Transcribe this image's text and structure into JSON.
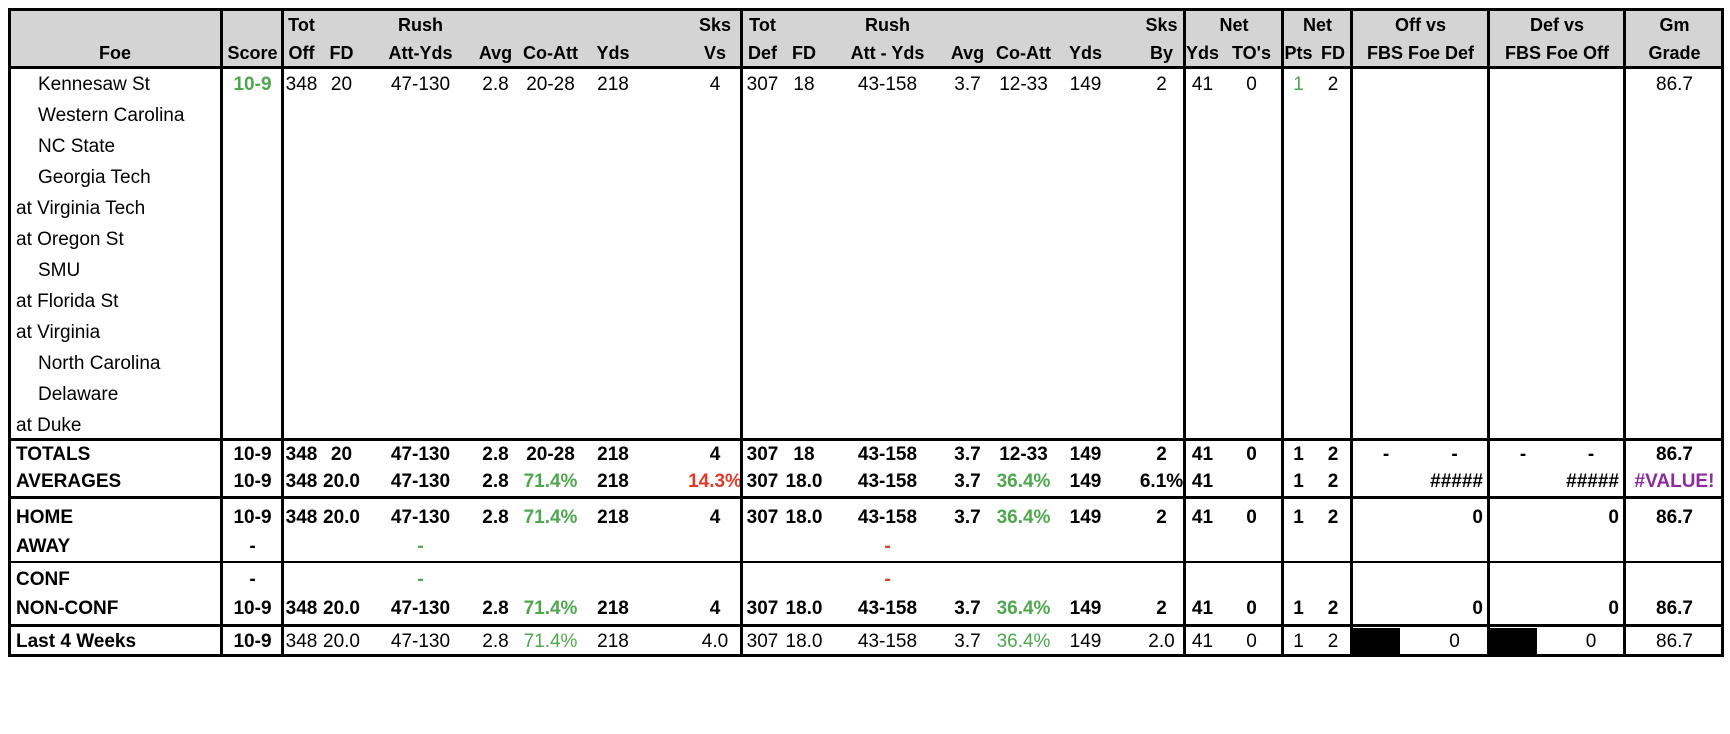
{
  "header": {
    "row1": {
      "tot_off": "Tot",
      "off_rush": "Rush",
      "sks_vs": "Sks",
      "tot_def": "Tot",
      "def_rush": "Rush",
      "sks_by": "Sks",
      "net_yds": "Net",
      "net_pts": "Net",
      "off_vs": "Off vs",
      "def_vs": "Def vs",
      "gm": "Gm"
    },
    "row2": {
      "foe": "Foe",
      "score": "Score",
      "off": "Off",
      "fd": "FD",
      "att_yds": "Att-Yds",
      "avg": "Avg",
      "co_att": "Co-Att",
      "yds": "Yds",
      "vs": "Vs",
      "def": "Def",
      "dfd": "FD",
      "datt_yds": "Att - Yds",
      "davg": "Avg",
      "dco_att": "Co-Att",
      "dyds": "Yds",
      "by": "By",
      "net_y": "Yds",
      "tos": "TO's",
      "pts": "Pts",
      "nfd": "FD",
      "fbs_def": "FBS Foe Def",
      "fbs_off": "FBS Foe Off",
      "grade": "Grade"
    }
  },
  "games": [
    {
      "foe": "Kennesaw St",
      "away": false,
      "score": "10-9",
      "tot_off": "348",
      "fd": "20",
      "rush": "47-130",
      "avg": "2.8",
      "co_att": "20-28",
      "yds": "218",
      "sks_vs": "4",
      "tot_def": "307",
      "dfd": "18",
      "drush": "43-158",
      "davg": "3.7",
      "dco_att": "12-33",
      "dyds": "149",
      "sks_by": "2",
      "net_yds": "41",
      "tos": "0",
      "pts": "1",
      "nfd": "2",
      "grade": "86.7"
    },
    {
      "foe": "Western Carolina",
      "away": false
    },
    {
      "foe": "NC State",
      "away": false
    },
    {
      "foe": "Georgia Tech",
      "away": false
    },
    {
      "foe": "at Virginia Tech",
      "away": true
    },
    {
      "foe": "at Oregon St",
      "away": true
    },
    {
      "foe": "SMU",
      "away": false
    },
    {
      "foe": "at Florida St",
      "away": true
    },
    {
      "foe": "at Virginia",
      "away": true
    },
    {
      "foe": "North Carolina",
      "away": false
    },
    {
      "foe": "Delaware",
      "away": false
    },
    {
      "foe": "at Duke",
      "away": true
    }
  ],
  "summary": {
    "totals": {
      "label": "TOTALS",
      "score": "10-9",
      "tot_off": "348",
      "fd": "20",
      "rush": "47-130",
      "avg": "2.8",
      "co_att": "20-28",
      "yds": "218",
      "sks_vs": "4",
      "tot_def": "307",
      "dfd": "18",
      "drush": "43-158",
      "davg": "3.7",
      "dco_att": "12-33",
      "dyds": "149",
      "sks_by": "2",
      "net_yds": "41",
      "tos": "0",
      "pts": "1",
      "nfd": "2",
      "off_vs_a": "-",
      "off_vs_b": "-",
      "def_vs_a": "-",
      "def_vs_b": "-",
      "grade": "86.7"
    },
    "averages": {
      "label": "AVERAGES",
      "score": "10-9",
      "tot_off": "348",
      "fd": "20.0",
      "rush": "47-130",
      "avg": "2.8",
      "co_att": "71.4%",
      "yds": "218",
      "sks_vs": "14.3%",
      "tot_def": "307",
      "dfd": "18.0",
      "drush": "43-158",
      "davg": "3.7",
      "dco_att": "36.4%",
      "dyds": "149",
      "sks_by": "6.1%",
      "net_yds": "41",
      "pts": "1",
      "nfd": "2",
      "off_vs": "#####",
      "def_vs": "#####",
      "grade": "#VALUE!"
    },
    "home": {
      "label": "HOME",
      "score": "10-9",
      "tot_off": "348",
      "fd": "20.0",
      "rush": "47-130",
      "avg": "2.8",
      "co_att": "71.4%",
      "yds": "218",
      "sks_vs": "4",
      "tot_def": "307",
      "dfd": "18.0",
      "drush": "43-158",
      "davg": "3.7",
      "dco_att": "36.4%",
      "dyds": "149",
      "sks_by": "2",
      "net_yds": "41",
      "tos": "0",
      "pts": "1",
      "nfd": "2",
      "off_vs": "0",
      "def_vs": "0",
      "grade": "86.7"
    },
    "away": {
      "label": "AWAY",
      "score": "-",
      "rush": "-",
      "drush": "-"
    },
    "conf": {
      "label": "CONF",
      "score": "-",
      "rush": "-",
      "drush": "-"
    },
    "nonconf": {
      "label": "NON-CONF",
      "score": "10-9",
      "tot_off": "348",
      "fd": "20.0",
      "rush": "47-130",
      "avg": "2.8",
      "co_att": "71.4%",
      "yds": "218",
      "sks_vs": "4",
      "tot_def": "307",
      "dfd": "18.0",
      "drush": "43-158",
      "davg": "3.7",
      "dco_att": "36.4%",
      "dyds": "149",
      "sks_by": "2",
      "net_yds": "41",
      "tos": "0",
      "pts": "1",
      "nfd": "2",
      "off_vs": "0",
      "def_vs": "0",
      "grade": "86.7"
    },
    "last4": {
      "label": "Last 4 Weeks",
      "score": "10-9",
      "tot_off": "348",
      "fd": "20.0",
      "rush": "47-130",
      "avg": "2.8",
      "co_att": "71.4%",
      "yds": "218",
      "sks_vs": "4.0",
      "tot_def": "307",
      "dfd": "18.0",
      "drush": "43-158",
      "davg": "3.7",
      "dco_att": "36.4%",
      "dyds": "149",
      "sks_by": "2.0",
      "net_yds": "41",
      "tos": "0",
      "pts": "1",
      "nfd": "2",
      "off_vs": "0",
      "def_vs": "0",
      "grade": "86.7"
    }
  },
  "colors": {
    "header_bg": "#d4d4d4",
    "positive": "#4ea64e",
    "negative": "#e03a2a",
    "error": "#8a2c9a",
    "highlight": "#ffff99"
  }
}
